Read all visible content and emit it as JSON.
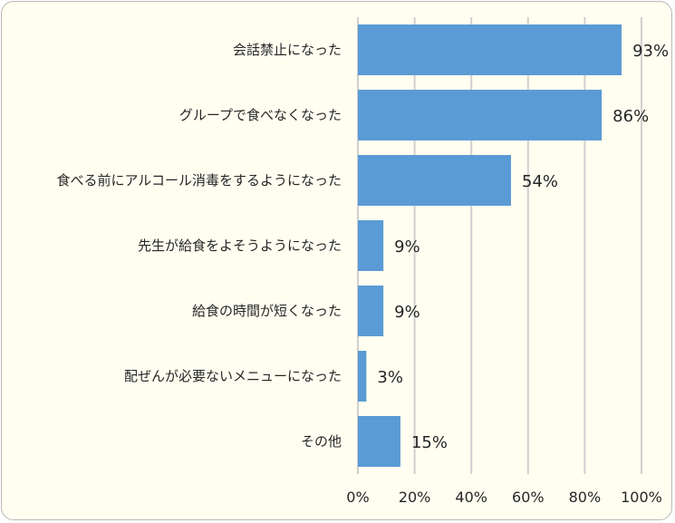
{
  "chart_data": {
    "type": "bar",
    "orientation": "horizontal",
    "categories": [
      "会話禁止になった",
      "グループで食べなくなった",
      "食べる前にアルコール消毒をするようになった",
      "先生が給食をよそうようになった",
      "給食の時間が短くなった",
      "配ぜんが必要ないメニューになった",
      "その他"
    ],
    "values": [
      93,
      86,
      54,
      9,
      9,
      3,
      15
    ],
    "value_labels": [
      "93%",
      "86%",
      "54%",
      "9%",
      "9%",
      "3%",
      "15%"
    ],
    "x_ticks": [
      "0%",
      "20%",
      "40%",
      "60%",
      "80%",
      "100%"
    ],
    "xlim": [
      0,
      100
    ],
    "grid": "vertical",
    "bar_color": "#5b9bd5"
  }
}
